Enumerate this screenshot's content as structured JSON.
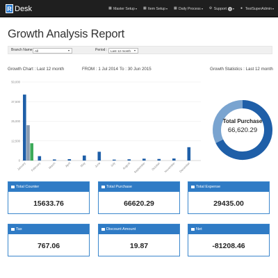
{
  "app": {
    "brand_letter": "R",
    "brand_text": "Desk"
  },
  "navbar": {
    "items": [
      {
        "label": "Master Setup",
        "icon": "grid-icon"
      },
      {
        "label": "Item Setup",
        "icon": "grid-icon"
      },
      {
        "label": "Daily Process",
        "icon": "grid-icon"
      },
      {
        "label": "Support",
        "icon": "gear-icon"
      },
      {
        "label": "TestSuperAdmin",
        "icon": "user-icon"
      }
    ]
  },
  "page": {
    "title": "Growth Analysis Report"
  },
  "filters": {
    "branch_label": "Branch Name :",
    "branch_value": "All",
    "period_label": "Period :",
    "period_value": "Last 12 month"
  },
  "chart_header": {
    "title": "Growth Chart : Last 12 month",
    "from": "FROM : 1 Jul 2014",
    "to": "To : 30 Jun 2015"
  },
  "stats_header": {
    "title": "Growth Statistics : Last 12 month"
  },
  "donut": {
    "title": "Total Purchase",
    "value": "66,620.29",
    "colors": {
      "primary": "#1f5fa8",
      "light": "#7aa4d0",
      "bg": "#dfe8f2"
    }
  },
  "cards": [
    {
      "label": "Total Counter",
      "value": "15633.76"
    },
    {
      "label": "Total Purchase",
      "value": "66620.29"
    },
    {
      "label": "Total Expense",
      "value": "29435.00"
    },
    {
      "label": "Tax",
      "value": "767.06"
    },
    {
      "label": "Discount Amount",
      "value": "19.87"
    },
    {
      "label": "Net",
      "value": "-81208.46"
    }
  ],
  "chart_data": {
    "type": "bar",
    "categories": [
      "January",
      "February",
      "March",
      "April",
      "May",
      "June",
      "July",
      "August",
      "September",
      "October",
      "November",
      "December"
    ],
    "series": [
      {
        "color": "#1f5fa8",
        "values": [
          42000,
          2800,
          700,
          900,
          3200,
          5600,
          600,
          800,
          1200,
          1000,
          1300,
          8500
        ]
      },
      {
        "color": "#8a9bb0",
        "values": [
          22500,
          0,
          0,
          0,
          0,
          0,
          0,
          0,
          0,
          0,
          0,
          0
        ]
      },
      {
        "color": "#3daa5a",
        "values": [
          11000,
          0,
          0,
          0,
          0,
          0,
          0,
          0,
          0,
          0,
          0,
          0
        ]
      }
    ],
    "yticks": [
      "50,000",
      "37,500",
      "25,000",
      "12,500",
      "0"
    ],
    "ylim": [
      0,
      50000
    ],
    "grid": true,
    "colors": {
      "grid": "#e8e8e8",
      "axis": "#bbbbbb"
    }
  }
}
